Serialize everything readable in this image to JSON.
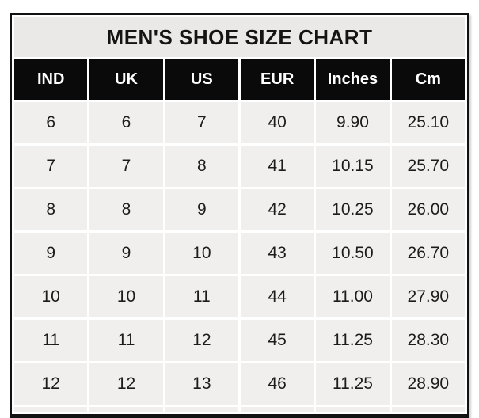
{
  "title": "MEN'S SHOE SIZE CHART",
  "table": {
    "columns": [
      "IND",
      "UK",
      "US",
      "EUR",
      "Inches",
      "Cm"
    ],
    "rows": [
      [
        "6",
        "6",
        "7",
        "40",
        "9.90",
        "25.10"
      ],
      [
        "7",
        "7",
        "8",
        "41",
        "10.15",
        "25.70"
      ],
      [
        "8",
        "8",
        "9",
        "42",
        "10.25",
        "26.00"
      ],
      [
        "9",
        "9",
        "10",
        "43",
        "10.50",
        "26.70"
      ],
      [
        "10",
        "10",
        "11",
        "44",
        "11.00",
        "27.90"
      ],
      [
        "11",
        "11",
        "12",
        "45",
        "11.25",
        "28.30"
      ],
      [
        "12",
        "12",
        "13",
        "46",
        "11.25",
        "28.90"
      ]
    ]
  },
  "colors": {
    "title_bg": "#eae9e8",
    "header_bg": "#0a0a0a",
    "header_text": "#ffffff",
    "cell_bg": "#f0efed",
    "cell_text": "#1c1c1c",
    "border": "#121212",
    "gap": "#ffffff"
  },
  "chart_data": {
    "type": "table",
    "title": "MEN'S SHOE SIZE CHART",
    "columns": [
      "IND",
      "UK",
      "US",
      "EUR",
      "Inches",
      "Cm"
    ],
    "rows": [
      [
        6,
        6,
        7,
        40,
        9.9,
        25.1
      ],
      [
        7,
        7,
        8,
        41,
        10.15,
        25.7
      ],
      [
        8,
        8,
        9,
        42,
        10.25,
        26.0
      ],
      [
        9,
        9,
        10,
        43,
        10.5,
        26.7
      ],
      [
        10,
        10,
        11,
        44,
        11.0,
        27.9
      ],
      [
        11,
        11,
        12,
        45,
        11.25,
        28.3
      ],
      [
        12,
        12,
        13,
        46,
        11.25,
        28.9
      ]
    ],
    "layout": {
      "header_style": "black background, white bold text",
      "body_style": "light gray cells with white gaps",
      "grid": "separated cells"
    }
  }
}
